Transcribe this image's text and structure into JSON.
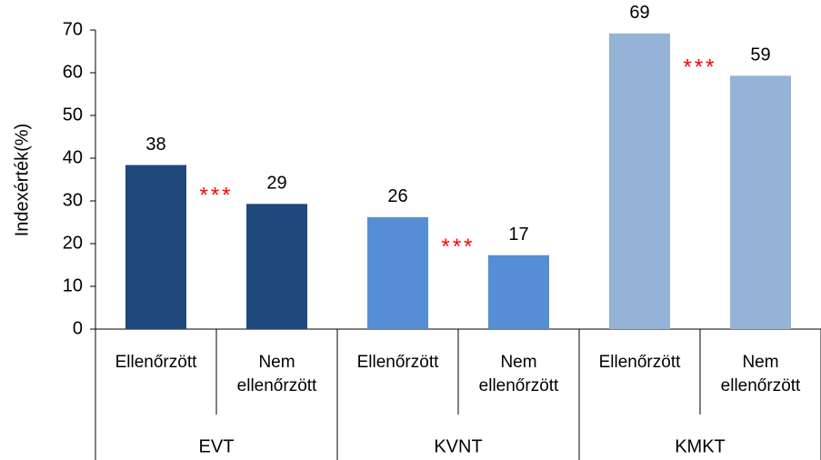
{
  "chart_data": {
    "type": "bar",
    "y_label": "Indexérték(%)",
    "categories": [
      "Ellenőrzött",
      "Nem ellenőrzött",
      "Ellenőrzött",
      "Nem ellenőrzött",
      "Ellenőrzött",
      "Nem ellenőrzött"
    ],
    "groups": [
      "EVT",
      "KVNT",
      "KMKT"
    ],
    "values": [
      38.4,
      29.3,
      26.2,
      17.3,
      69.2,
      59.3
    ],
    "value_labels": [
      "38",
      "29",
      "26",
      "17",
      "69",
      "59"
    ],
    "colors": [
      "#1f497d",
      "#1f497d",
      "#558ed5",
      "#558ed5",
      "#95b3d7",
      "#95b3d7"
    ],
    "annotations": [
      "***",
      "***",
      "***"
    ],
    "annotation_color": "#ff0000",
    "ylim": [
      0,
      70
    ],
    "yticks": [
      0,
      10,
      20,
      30,
      40,
      50,
      60,
      70
    ],
    "grid": false
  }
}
